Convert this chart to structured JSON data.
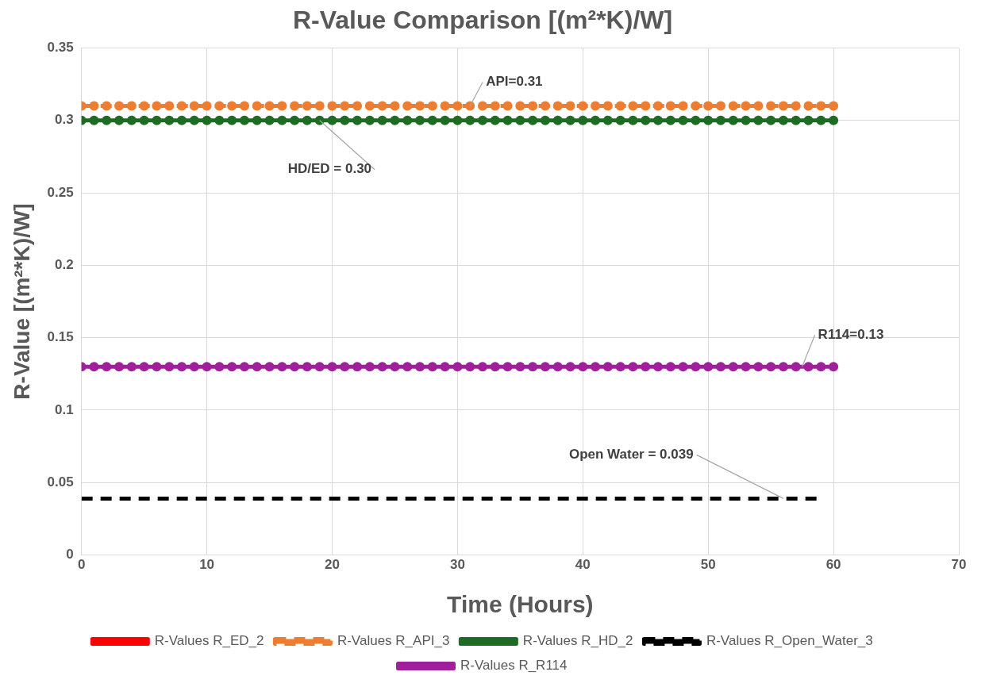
{
  "chart_data": {
    "type": "line",
    "title": "R-Value Comparison [(m²*K)/W]",
    "xlabel": "Time (Hours)",
    "ylabel": "R-Value [(m²*K)/W]",
    "x": [
      0,
      1,
      2,
      3,
      4,
      5,
      6,
      7,
      8,
      9,
      10,
      11,
      12,
      13,
      14,
      15,
      16,
      17,
      18,
      19,
      20,
      21,
      22,
      23,
      24,
      25,
      26,
      27,
      28,
      29,
      30,
      31,
      32,
      33,
      34,
      35,
      36,
      37,
      38,
      39,
      40,
      41,
      42,
      43,
      44,
      45,
      46,
      47,
      48,
      49,
      50,
      51,
      52,
      53,
      54,
      55,
      56,
      57,
      58,
      59,
      60
    ],
    "xlim": [
      0,
      70
    ],
    "xticks": [
      0,
      10,
      20,
      30,
      40,
      50,
      60,
      70
    ],
    "ylim": [
      0,
      0.35
    ],
    "yticks": [
      0,
      0.05,
      0.1,
      0.15,
      0.2,
      0.25,
      0.3,
      0.35
    ],
    "grid": true,
    "legend": "bottom",
    "marker": "circle",
    "series": [
      {
        "name": "R-Values R_ED_2",
        "color": "#ff0000",
        "values": [
          null,
          null,
          null,
          null,
          null,
          null,
          null,
          null,
          null,
          null,
          null,
          null,
          null,
          null,
          null,
          null,
          null,
          null,
          null,
          null,
          null,
          null,
          null,
          null,
          null,
          null,
          null,
          null,
          null,
          null,
          null,
          null,
          null,
          null,
          null,
          null,
          null,
          null,
          null,
          null,
          null,
          null,
          null,
          null,
          null,
          null,
          null,
          null,
          null,
          null,
          null,
          null,
          null,
          null,
          null,
          null,
          null,
          null,
          null,
          null,
          null
        ]
      },
      {
        "name": "R-Values R_API_3",
        "color": "#ed7d31",
        "line_style": "dashed",
        "values": [
          0.31,
          0.31,
          0.31,
          0.31,
          0.31,
          0.31,
          0.31,
          0.31,
          0.31,
          0.31,
          0.31,
          0.31,
          0.31,
          0.31,
          0.31,
          0.31,
          0.31,
          0.31,
          0.31,
          0.31,
          0.31,
          0.31,
          0.31,
          0.31,
          0.31,
          0.31,
          0.31,
          0.31,
          0.31,
          0.31,
          0.31,
          0.31,
          0.31,
          0.31,
          0.31,
          0.31,
          0.31,
          0.31,
          0.31,
          0.31,
          0.31,
          0.31,
          0.31,
          0.31,
          0.31,
          0.31,
          0.31,
          0.31,
          0.31,
          0.31,
          0.31,
          0.31,
          0.31,
          0.31,
          0.31,
          0.31,
          0.31,
          0.31,
          0.31,
          0.31,
          0.31
        ]
      },
      {
        "name": "R-Values R_HD_2",
        "color": "#1e6b23",
        "values": [
          0.3,
          0.3,
          0.3,
          0.3,
          0.3,
          0.3,
          0.3,
          0.3,
          0.3,
          0.3,
          0.3,
          0.3,
          0.3,
          0.3,
          0.3,
          0.3,
          0.3,
          0.3,
          0.3,
          0.3,
          0.3,
          0.3,
          0.3,
          0.3,
          0.3,
          0.3,
          0.3,
          0.3,
          0.3,
          0.3,
          0.3,
          0.3,
          0.3,
          0.3,
          0.3,
          0.3,
          0.3,
          0.3,
          0.3,
          0.3,
          0.3,
          0.3,
          0.3,
          0.3,
          0.3,
          0.3,
          0.3,
          0.3,
          0.3,
          0.3,
          0.3,
          0.3,
          0.3,
          0.3,
          0.3,
          0.3,
          0.3,
          0.3,
          0.3,
          0.3,
          0.3
        ]
      },
      {
        "name": "R-Values R_Open_Water_3",
        "color": "#000000",
        "line_style": "dashed",
        "marker": "none",
        "values": [
          0.039,
          0.039,
          0.039,
          0.039,
          0.039,
          0.039,
          0.039,
          0.039,
          0.039,
          0.039,
          0.039,
          0.039,
          0.039,
          0.039,
          0.039,
          0.039,
          0.039,
          0.039,
          0.039,
          0.039,
          0.039,
          0.039,
          0.039,
          0.039,
          0.039,
          0.039,
          0.039,
          0.039,
          0.039,
          0.039,
          0.039,
          0.039,
          0.039,
          0.039,
          0.039,
          0.039,
          0.039,
          0.039,
          0.039,
          0.039,
          0.039,
          0.039,
          0.039,
          0.039,
          0.039,
          0.039,
          0.039,
          0.039,
          0.039,
          0.039,
          0.039,
          0.039,
          0.039,
          0.039,
          0.039,
          0.039,
          0.039,
          0.039,
          0.039,
          0.039,
          null
        ]
      },
      {
        "name": "R-Values R_R114",
        "color": "#a0209c",
        "values": [
          0.13,
          0.13,
          0.13,
          0.13,
          0.13,
          0.13,
          0.13,
          0.13,
          0.13,
          0.13,
          0.13,
          0.13,
          0.13,
          0.13,
          0.13,
          0.13,
          0.13,
          0.13,
          0.13,
          0.13,
          0.13,
          0.13,
          0.13,
          0.13,
          0.13,
          0.13,
          0.13,
          0.13,
          0.13,
          0.13,
          0.13,
          0.13,
          0.13,
          0.13,
          0.13,
          0.13,
          0.13,
          0.13,
          0.13,
          0.13,
          0.13,
          0.13,
          0.13,
          0.13,
          0.13,
          0.13,
          0.13,
          0.13,
          0.13,
          0.13,
          0.13,
          0.13,
          0.13,
          0.13,
          0.13,
          0.13,
          0.13,
          0.13,
          0.13,
          0.13,
          0.13
        ]
      }
    ],
    "annotations": [
      {
        "text": "API=0.31",
        "x": 31,
        "y": 0.31
      },
      {
        "text": "HD/ED = 0.30",
        "x": 19,
        "y": 0.3
      },
      {
        "text": "R114=0.13",
        "x": 57.5,
        "y": 0.13
      },
      {
        "text": "Open Water = 0.039",
        "x": 56,
        "y": 0.039
      }
    ]
  }
}
